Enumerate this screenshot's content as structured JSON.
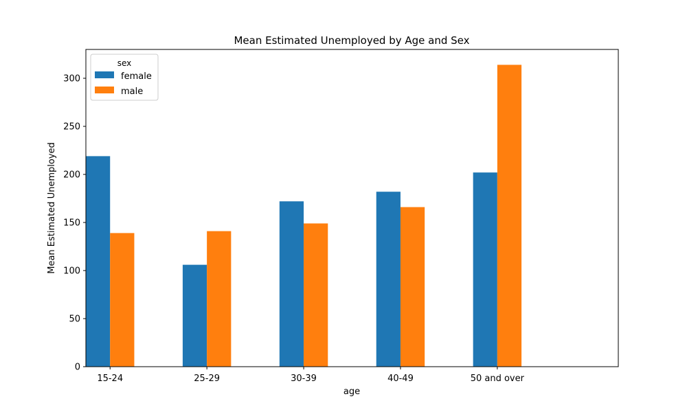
{
  "chart_data": {
    "type": "bar",
    "title": "Mean Estimated Unemployed by Age and Sex",
    "xlabel": "age",
    "ylabel": "Mean Estimated Unemployed",
    "categories": [
      "15-24",
      "25-29",
      "30-39",
      "40-49",
      "50 and over"
    ],
    "series": [
      {
        "name": "female",
        "color": "#1f77b4",
        "values": [
          219,
          106,
          172,
          182,
          202
        ]
      },
      {
        "name": "male",
        "color": "#ff7f0e",
        "values": [
          139,
          141,
          149,
          166,
          314
        ]
      }
    ],
    "ylim": [
      0,
      330
    ],
    "yticks": [
      0,
      50,
      100,
      150,
      200,
      250,
      300
    ],
    "grid": false,
    "legend": {
      "title": "sex",
      "placement": "top-left"
    }
  }
}
